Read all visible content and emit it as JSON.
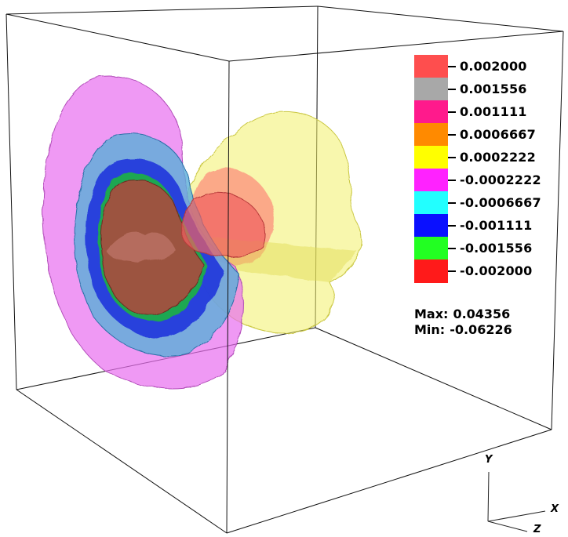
{
  "legend": {
    "entries": [
      {
        "label": "0.002000",
        "color": "#fe4e4e"
      },
      {
        "label": "0.001556",
        "color": "#a8a8a8"
      },
      {
        "label": "0.001111",
        "color": "#ff1a8c"
      },
      {
        "label": "0.0006667",
        "color": "#ff8a00"
      },
      {
        "label": "0.0002222",
        "color": "#ffff00"
      },
      {
        "label": "-0.0002222",
        "color": "#ff22ff"
      },
      {
        "label": "-0.0006667",
        "color": "#22ffff"
      },
      {
        "label": "-0.001111",
        "color": "#0a10ff"
      },
      {
        "label": "-0.001556",
        "color": "#22ff22"
      },
      {
        "label": "-0.002000",
        "color": "#ff1a1a"
      }
    ]
  },
  "range": {
    "max_label": "Max:",
    "max_value": "0.04356",
    "min_label": "Min:",
    "min_value": "-0.06226"
  },
  "axes": {
    "y": "Y",
    "x": "X",
    "z": "Z"
  }
}
